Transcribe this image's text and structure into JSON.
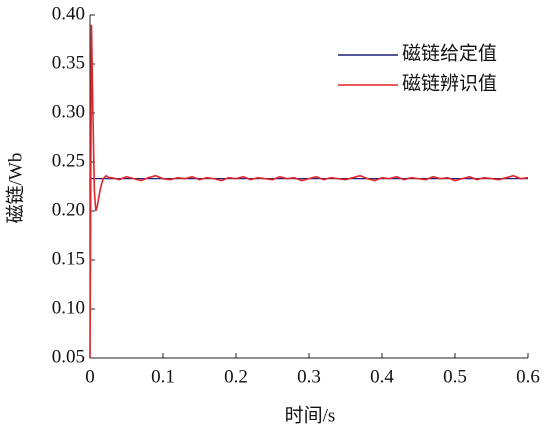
{
  "chart_data": {
    "type": "line",
    "xlabel": "时间/s",
    "ylabel": "磁链/Wb",
    "xlim": [
      0,
      0.6
    ],
    "ylim": [
      0.05,
      0.4
    ],
    "xticks": [
      0,
      0.1,
      0.2,
      0.3,
      0.4,
      0.5,
      0.6
    ],
    "yticks": [
      0.05,
      {
        "value": 0.1,
        "label": "0.10"
      },
      0.15,
      {
        "value": 0.2,
        "label": "0.20"
      },
      0.25,
      {
        "value": 0.3,
        "label": "0.30"
      },
      0.35,
      {
        "value": 0.4,
        "label": "0.40"
      }
    ],
    "legend": "upper right",
    "series": [
      {
        "name": "磁链给定值",
        "color": "#1f1f7a",
        "x": [
          0,
          0,
          0.6
        ],
        "values": [
          0.05,
          0.233,
          0.233
        ]
      },
      {
        "name": "磁链辨识值",
        "color": "#e0262b",
        "x": [
          0,
          0.002,
          0.004,
          0.006,
          0.008,
          0.01,
          0.014,
          0.018,
          0.022,
          0.026,
          0.03,
          0.04,
          0.05,
          0.06,
          0.07,
          0.08,
          0.09,
          0.1,
          0.11,
          0.12,
          0.13,
          0.14,
          0.15,
          0.16,
          0.17,
          0.18,
          0.19,
          0.2,
          0.21,
          0.22,
          0.23,
          0.24,
          0.25,
          0.26,
          0.27,
          0.28,
          0.29,
          0.3,
          0.31,
          0.32,
          0.33,
          0.34,
          0.35,
          0.36,
          0.37,
          0.38,
          0.39,
          0.4,
          0.41,
          0.42,
          0.43,
          0.44,
          0.45,
          0.46,
          0.47,
          0.48,
          0.49,
          0.5,
          0.51,
          0.52,
          0.53,
          0.54,
          0.55,
          0.56,
          0.57,
          0.58,
          0.59,
          0.6
        ],
        "values": [
          0.05,
          0.39,
          0.3,
          0.22,
          0.2,
          0.205,
          0.222,
          0.233,
          0.236,
          0.234,
          0.234,
          0.232,
          0.235,
          0.233,
          0.231,
          0.234,
          0.236,
          0.233,
          0.232,
          0.234,
          0.233,
          0.235,
          0.232,
          0.234,
          0.233,
          0.231,
          0.234,
          0.233,
          0.235,
          0.232,
          0.234,
          0.233,
          0.232,
          0.235,
          0.233,
          0.234,
          0.231,
          0.233,
          0.235,
          0.232,
          0.234,
          0.233,
          0.232,
          0.234,
          0.236,
          0.233,
          0.231,
          0.234,
          0.233,
          0.235,
          0.232,
          0.234,
          0.233,
          0.232,
          0.235,
          0.233,
          0.234,
          0.231,
          0.233,
          0.235,
          0.232,
          0.234,
          0.233,
          0.232,
          0.234,
          0.236,
          0.233,
          0.234
        ]
      }
    ]
  }
}
